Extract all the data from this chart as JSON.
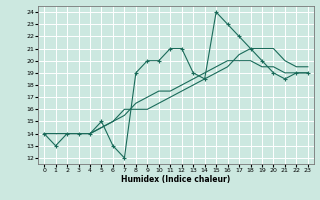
{
  "title": "",
  "xlabel": "Humidex (Indice chaleur)",
  "bg_color": "#cce8e0",
  "grid_color": "#ffffff",
  "line_color": "#1a6b5a",
  "xlim": [
    -0.5,
    23.5
  ],
  "ylim": [
    11.5,
    24.5
  ],
  "xticks": [
    0,
    1,
    2,
    3,
    4,
    5,
    6,
    7,
    8,
    9,
    10,
    11,
    12,
    13,
    14,
    15,
    16,
    17,
    18,
    19,
    20,
    21,
    22,
    23
  ],
  "yticks": [
    12,
    13,
    14,
    15,
    16,
    17,
    18,
    19,
    20,
    21,
    22,
    23,
    24
  ],
  "series": [
    {
      "x": [
        0,
        1,
        2,
        3,
        4,
        5,
        6,
        7,
        8,
        9,
        10,
        11,
        12,
        13,
        14,
        15,
        16,
        17,
        18,
        19,
        20,
        21,
        22,
        23
      ],
      "y": [
        14,
        13,
        14,
        14,
        14,
        15,
        13,
        12,
        19,
        20,
        20,
        21,
        21,
        19,
        18.5,
        24,
        23,
        22,
        21,
        20,
        19,
        18.5,
        19,
        19
      ],
      "marker": "+"
    },
    {
      "x": [
        0,
        3,
        4,
        6,
        7,
        8,
        9,
        10,
        11,
        12,
        13,
        14,
        15,
        16,
        17,
        18,
        19,
        20,
        21,
        22,
        23
      ],
      "y": [
        14,
        14,
        14,
        15,
        15.5,
        16.5,
        17,
        17.5,
        17.5,
        18,
        18.5,
        19,
        19.5,
        20,
        20,
        20,
        19.5,
        19.5,
        19,
        19,
        19
      ],
      "marker": null
    },
    {
      "x": [
        0,
        3,
        4,
        6,
        7,
        8,
        9,
        10,
        11,
        12,
        13,
        14,
        15,
        16,
        17,
        18,
        19,
        20,
        21,
        22,
        23
      ],
      "y": [
        14,
        14,
        14,
        15,
        16,
        16,
        16,
        16.5,
        17,
        17.5,
        18,
        18.5,
        19,
        19.5,
        20.5,
        21,
        21,
        21,
        20,
        19.5,
        19.5
      ],
      "marker": null
    }
  ]
}
